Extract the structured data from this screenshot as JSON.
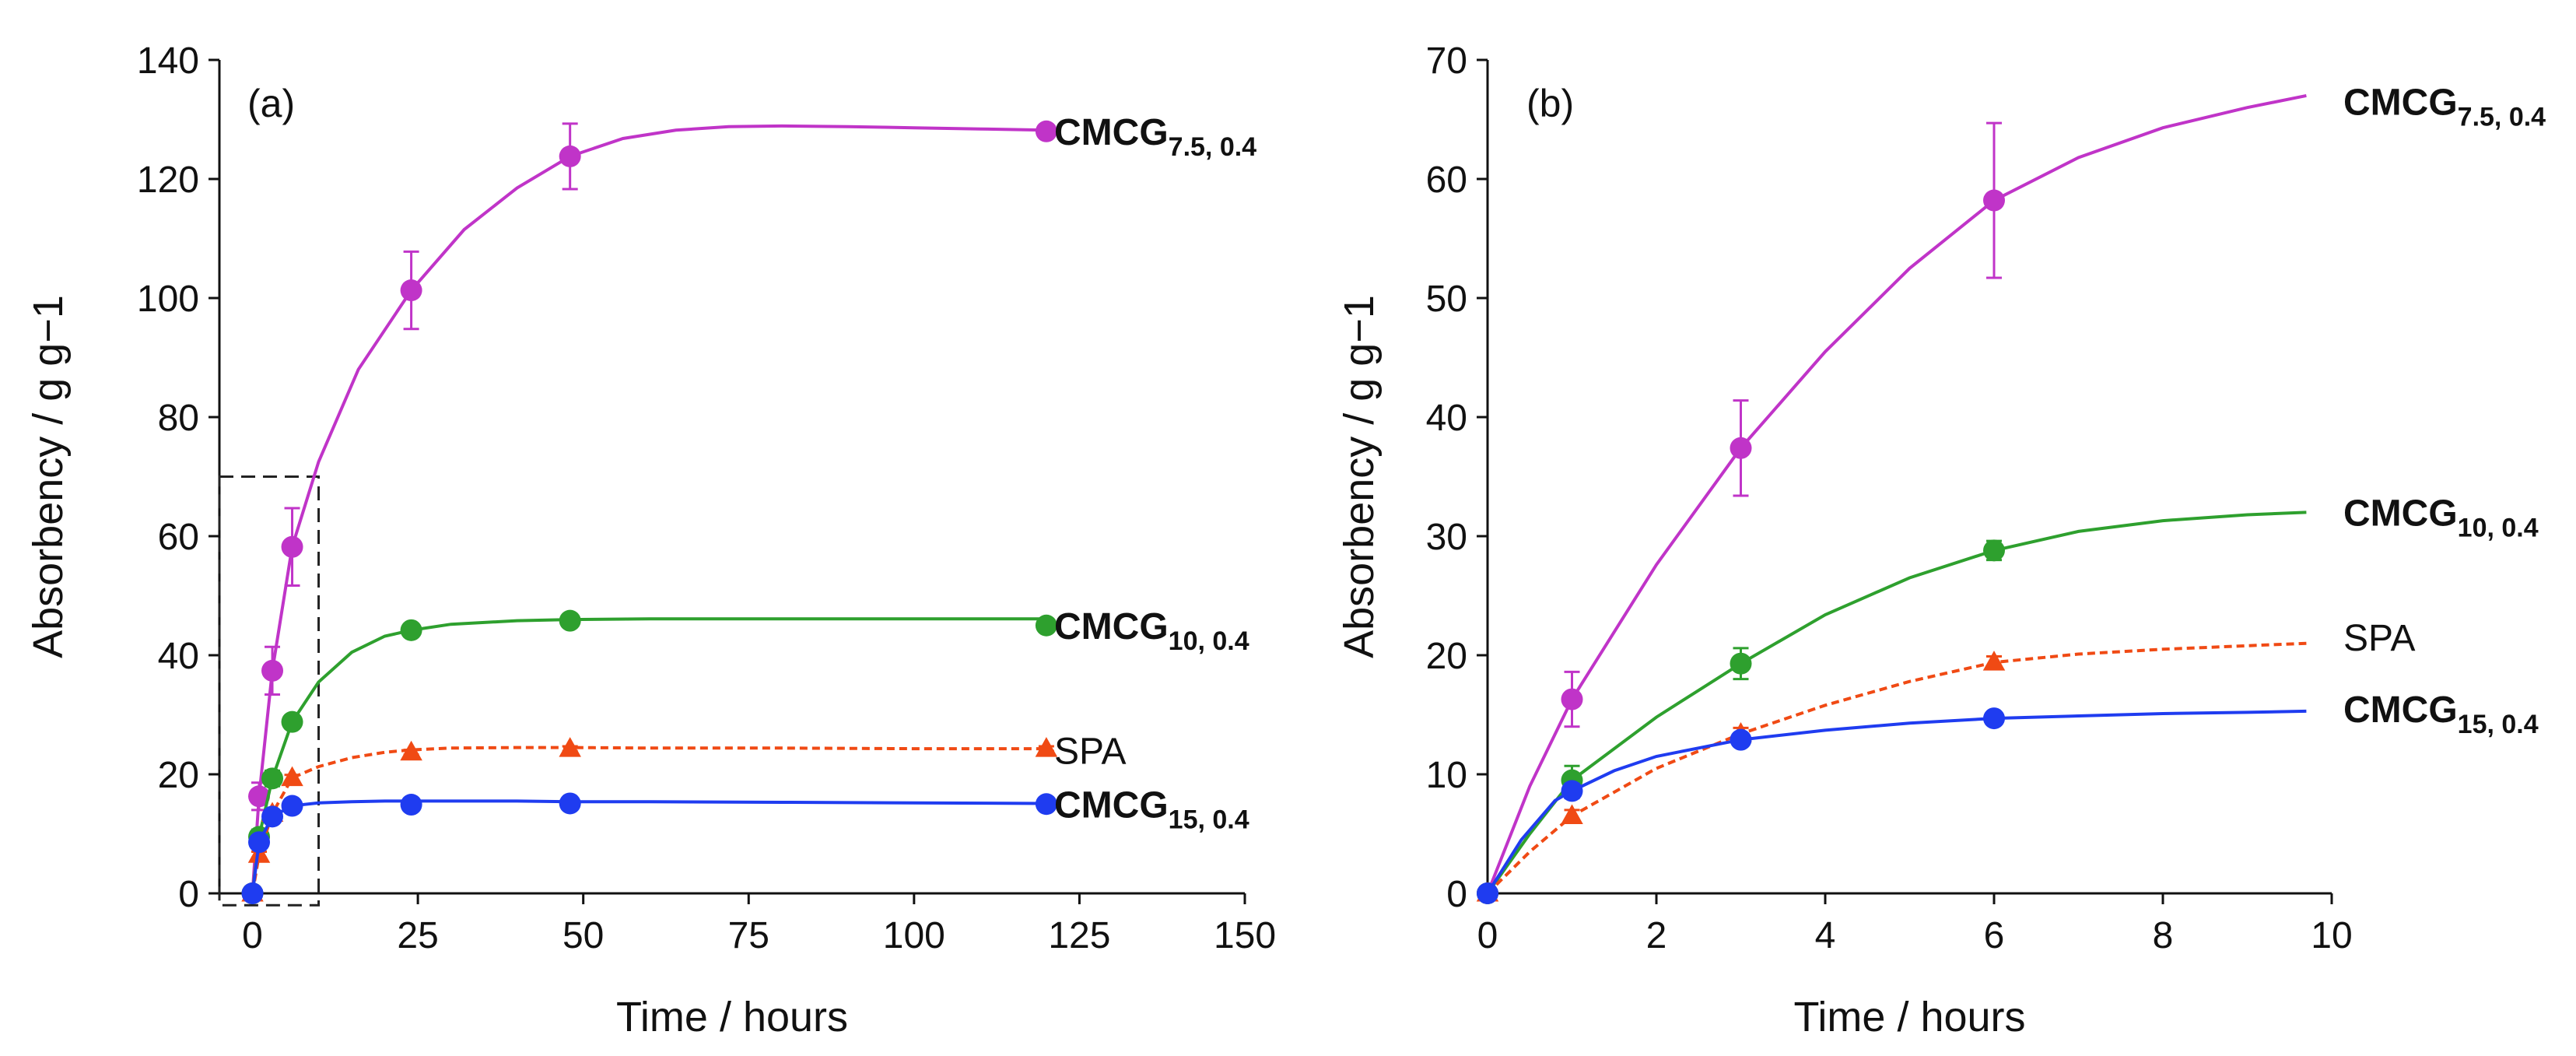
{
  "chart_data": [
    {
      "panel_label": "(a)",
      "type": "line",
      "xlabel": "Time / hours",
      "ylabel": "Absorbency / g g−1",
      "xlim": [
        -5,
        150
      ],
      "ylim": [
        0,
        140
      ],
      "xticks": [
        0,
        25,
        50,
        75,
        100,
        125,
        150
      ],
      "yticks": [
        0,
        20,
        40,
        60,
        80,
        100,
        120,
        140
      ],
      "inset_box": {
        "x": [
          -5,
          10
        ],
        "y": [
          -2,
          70
        ]
      },
      "series": [
        {
          "key": "cmcg75",
          "name": "CMCG7.5, 0.4",
          "base": "CMCG",
          "sub": "7.5, 0.4",
          "bold": true,
          "color": "#C034C8",
          "marker": "circle",
          "dashed": false,
          "x": [
            0,
            1,
            3,
            6,
            24,
            48,
            120
          ],
          "y": [
            0,
            16.3,
            37.4,
            58.2,
            101.3,
            123.8,
            128.0
          ],
          "err": [
            0,
            2.3,
            4,
            6.5,
            6.5,
            5.5,
            1
          ],
          "curve_x": [
            0,
            1,
            3,
            6,
            10,
            16,
            24,
            32,
            40,
            48,
            56,
            64,
            72,
            80,
            90,
            100,
            110,
            120
          ],
          "curve_y": [
            0,
            16.3,
            37.4,
            58.2,
            72.5,
            88.0,
            101.3,
            111.5,
            118.5,
            123.8,
            126.8,
            128.2,
            128.8,
            128.9,
            128.8,
            128.6,
            128.4,
            128.2
          ]
        },
        {
          "key": "cmcg10",
          "name": "CMCG10, 0.4",
          "base": "CMCG",
          "sub": "10, 0.4",
          "bold": true,
          "color": "#2EA02E",
          "marker": "circle",
          "dashed": false,
          "x": [
            0,
            1,
            3,
            6,
            24,
            48,
            120
          ],
          "y": [
            0,
            9.5,
            19.3,
            28.8,
            44.2,
            45.8,
            45.0
          ],
          "err": [
            0,
            1.2,
            1.3,
            0.8,
            0.8,
            0.6,
            0.5
          ],
          "curve_x": [
            0,
            1,
            3,
            6,
            10,
            15,
            20,
            24,
            30,
            40,
            48,
            60,
            80,
            100,
            120
          ],
          "curve_y": [
            0,
            9.5,
            19.3,
            28.8,
            35.5,
            40.5,
            43.2,
            44.2,
            45.2,
            45.8,
            46.0,
            46.1,
            46.1,
            46.1,
            46.1
          ]
        },
        {
          "key": "spa",
          "name": "SPA",
          "base": "SPA",
          "sub": "",
          "bold": false,
          "color": "#F04A14",
          "marker": "triangle",
          "dashed": true,
          "x": [
            0,
            1,
            3,
            6,
            24,
            48,
            120
          ],
          "y": [
            0,
            6.5,
            13.4,
            19.4,
            23.7,
            24.3,
            24.3
          ],
          "err": [
            0,
            0.5,
            0.5,
            0.5,
            0.4,
            0.4,
            0.4
          ],
          "curve_x": [
            0,
            1,
            3,
            6,
            10,
            15,
            20,
            24,
            30,
            40,
            48,
            60,
            80,
            100,
            120
          ],
          "curve_y": [
            0,
            6.5,
            13.4,
            19.4,
            21.3,
            22.8,
            23.7,
            24.1,
            24.4,
            24.5,
            24.5,
            24.4,
            24.4,
            24.3,
            24.3
          ]
        },
        {
          "key": "cmcg15",
          "name": "CMCG15, 0.4",
          "base": "CMCG",
          "sub": "15, 0.4",
          "bold": true,
          "color": "#1F3CF0",
          "marker": "circle",
          "dashed": false,
          "x": [
            0,
            1,
            3,
            6,
            24,
            48,
            120
          ],
          "y": [
            0,
            8.6,
            12.9,
            14.7,
            14.9,
            15.1,
            15.0
          ],
          "err": [
            0,
            0.6,
            0.4,
            0.4,
            0.3,
            0.3,
            0.3
          ],
          "curve_x": [
            0,
            1,
            3,
            6,
            10,
            15,
            20,
            24,
            30,
            40,
            48,
            60,
            80,
            100,
            120
          ],
          "curve_y": [
            0,
            8.6,
            12.9,
            14.7,
            15.2,
            15.4,
            15.5,
            15.5,
            15.5,
            15.5,
            15.4,
            15.4,
            15.3,
            15.2,
            15.1
          ]
        }
      ]
    },
    {
      "panel_label": "(b)",
      "type": "line",
      "xlabel": "Time / hours",
      "ylabel": "Absorbency / g g−1",
      "xlim": [
        0,
        10
      ],
      "ylim": [
        0,
        70
      ],
      "xticks": [
        0,
        2,
        4,
        6,
        8,
        10
      ],
      "yticks": [
        0,
        10,
        20,
        30,
        40,
        50,
        60,
        70
      ],
      "series": [
        {
          "key": "cmcg75",
          "name": "CMCG7.5, 0.4",
          "base": "CMCG",
          "sub": "7.5, 0.4",
          "bold": true,
          "color": "#C034C8",
          "marker": "circle",
          "dashed": false,
          "x": [
            0,
            1,
            3,
            6
          ],
          "y": [
            0,
            16.3,
            37.4,
            58.2
          ],
          "err": [
            0,
            2.3,
            4,
            6.5
          ],
          "curve_x": [
            0,
            0.5,
            1,
            2,
            3,
            4,
            5,
            6,
            7,
            8,
            9,
            9.7
          ],
          "curve_y": [
            0,
            9.0,
            16.3,
            27.6,
            37.4,
            45.5,
            52.5,
            58.2,
            61.8,
            64.3,
            66.0,
            67.0
          ]
        },
        {
          "key": "cmcg10",
          "name": "CMCG10, 0.4",
          "base": "CMCG",
          "sub": "10, 0.4",
          "bold": true,
          "color": "#2EA02E",
          "marker": "circle",
          "dashed": false,
          "x": [
            0,
            1,
            3,
            6
          ],
          "y": [
            0,
            9.5,
            19.3,
            28.8
          ],
          "err": [
            0,
            1.2,
            1.3,
            0.8
          ],
          "curve_x": [
            0,
            0.5,
            1,
            2,
            3,
            4,
            5,
            6,
            7,
            8,
            9,
            9.7
          ],
          "curve_y": [
            0,
            5.0,
            9.5,
            14.8,
            19.3,
            23.4,
            26.5,
            28.8,
            30.4,
            31.3,
            31.8,
            32.0
          ]
        },
        {
          "key": "spa",
          "name": "SPA",
          "base": "SPA",
          "sub": "",
          "bold": false,
          "color": "#F04A14",
          "marker": "triangle",
          "dashed": true,
          "x": [
            0,
            1,
            3,
            6
          ],
          "y": [
            0,
            6.5,
            13.4,
            19.4
          ],
          "err": [
            0,
            0.5,
            0.5,
            0.5
          ],
          "curve_x": [
            0,
            0.5,
            1,
            2,
            3,
            4,
            5,
            6,
            7,
            8,
            9,
            9.7
          ],
          "curve_y": [
            0,
            3.5,
            6.5,
            10.5,
            13.4,
            15.8,
            17.8,
            19.4,
            20.1,
            20.5,
            20.8,
            21.0
          ]
        },
        {
          "key": "cmcg15",
          "name": "CMCG15, 0.4",
          "base": "CMCG",
          "sub": "15, 0.4",
          "bold": true,
          "color": "#1F3CF0",
          "marker": "circle",
          "dashed": false,
          "x": [
            0,
            1,
            3,
            6
          ],
          "y": [
            0,
            8.6,
            12.9,
            14.7
          ],
          "err": [
            0,
            0.6,
            0.4,
            0.4
          ],
          "curve_x": [
            0,
            0.4,
            0.8,
            1,
            1.5,
            2,
            3,
            4,
            5,
            6,
            7,
            8,
            9,
            9.7
          ],
          "curve_y": [
            0,
            4.5,
            7.8,
            8.6,
            10.3,
            11.5,
            12.9,
            13.7,
            14.3,
            14.7,
            14.9,
            15.1,
            15.2,
            15.3
          ]
        }
      ]
    }
  ]
}
